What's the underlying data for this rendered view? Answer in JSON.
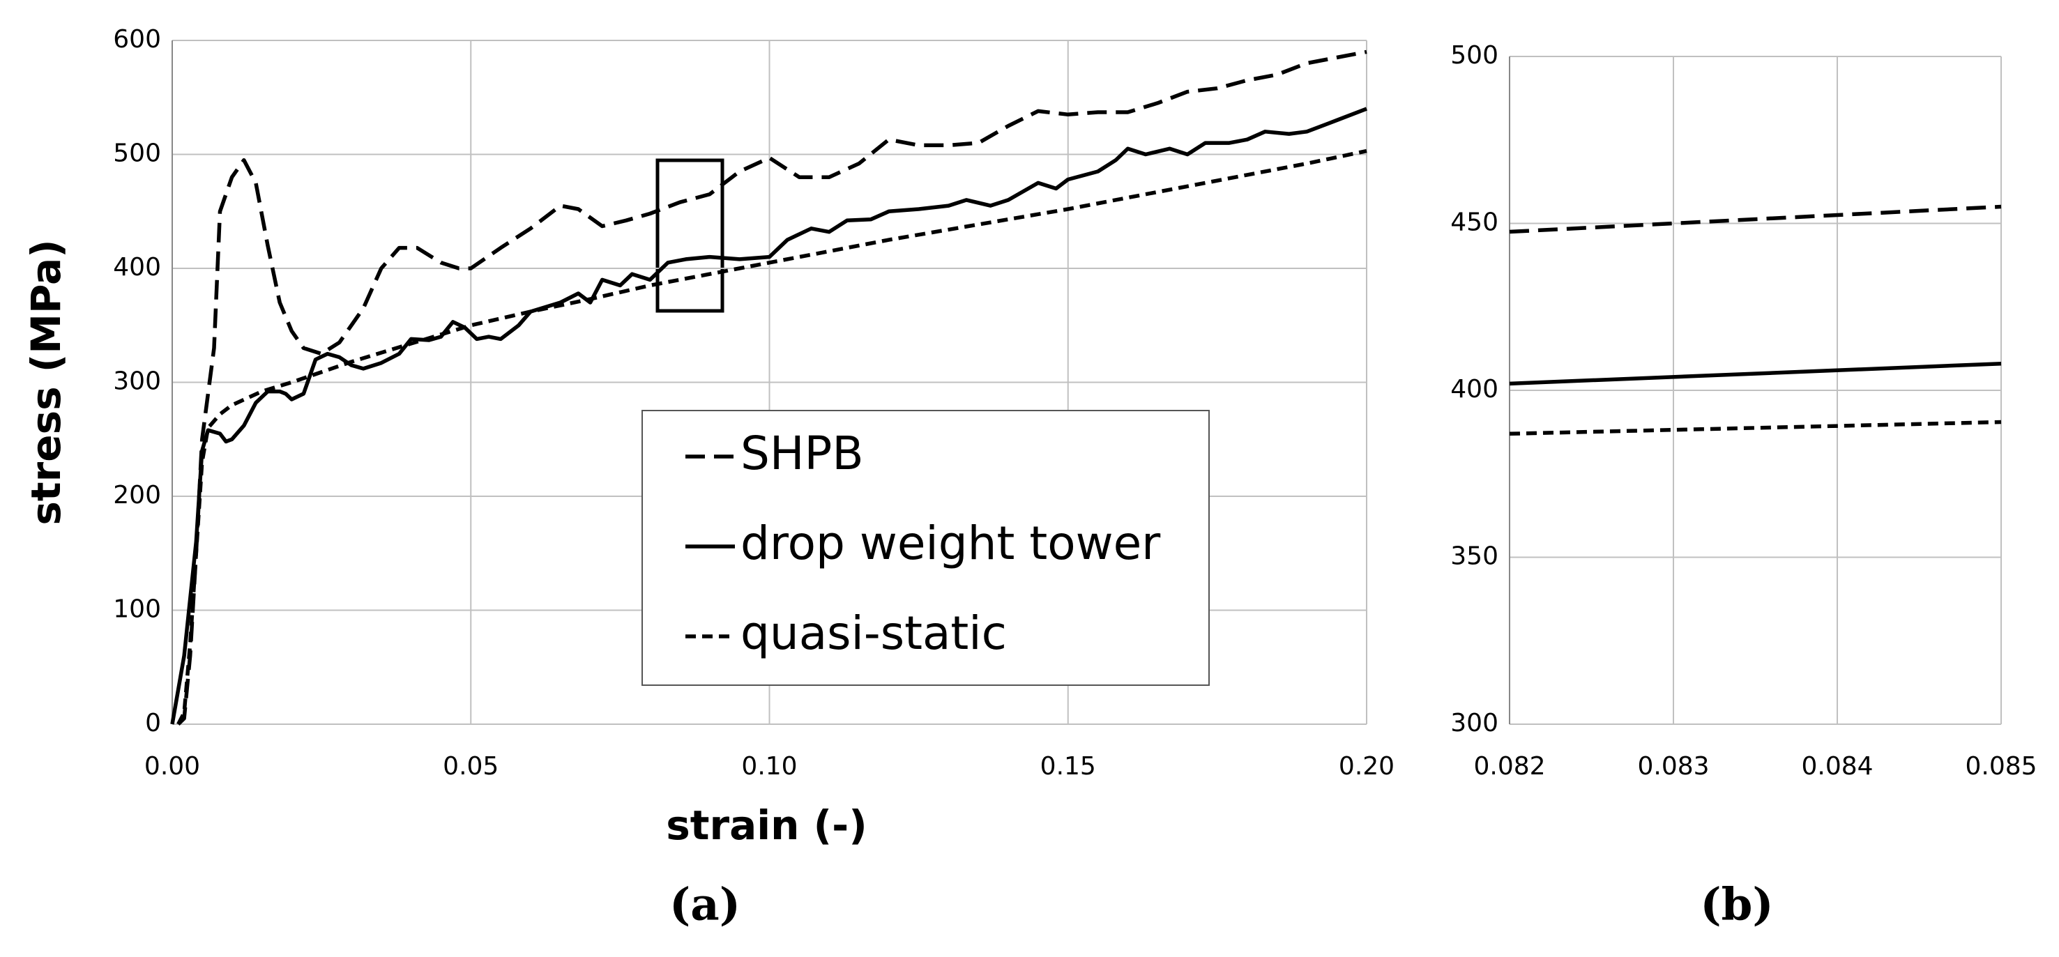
{
  "chart_data": [
    {
      "type": "line",
      "caption": "(a)",
      "x_label": "strain (-)",
      "y_label": "stress (MPa)",
      "xlim": [
        0,
        0.2
      ],
      "xticks": [
        {
          "value": 0,
          "label": "0.00"
        },
        0.05,
        {
          "value": 0.1,
          "label": "0.10"
        },
        0.15,
        {
          "value": 0.2,
          "label": "0.20"
        }
      ],
      "ylim": [
        0,
        600
      ],
      "yticks": [
        0,
        100,
        200,
        300,
        400,
        500,
        600
      ],
      "grid": true,
      "legend": true,
      "series": [
        {
          "name": "SHPB",
          "color": "#000000",
          "dash": "long",
          "x": [
            0.001,
            0.002,
            0.003,
            0.004,
            0.005,
            0.007,
            0.008,
            0.01,
            0.012,
            0.014,
            0.016,
            0.018,
            0.02,
            0.022,
            0.025,
            0.028,
            0.032,
            0.035,
            0.038,
            0.041,
            0.045,
            0.048,
            0.05,
            0.055,
            0.06,
            0.065,
            0.068,
            0.072,
            0.076,
            0.08,
            0.085,
            0.09,
            0.095,
            0.1,
            0.105,
            0.11,
            0.115,
            0.12,
            0.125,
            0.13,
            0.135,
            0.14,
            0.145,
            0.15,
            0.155,
            0.16,
            0.165,
            0.17,
            0.175,
            0.18,
            0.185,
            0.19,
            0.195,
            0.2
          ],
          "values": [
            0,
            5,
            60,
            150,
            250,
            330,
            450,
            480,
            495,
            475,
            420,
            370,
            345,
            330,
            325,
            335,
            365,
            400,
            418,
            418,
            405,
            400,
            400,
            418,
            435,
            455,
            452,
            437,
            442,
            448,
            458,
            465,
            485,
            497,
            480,
            480,
            492,
            513,
            508,
            508,
            510,
            525,
            538,
            535,
            537,
            537,
            545,
            555,
            558,
            565,
            570,
            580,
            585,
            590
          ]
        },
        {
          "name": "drop weight tower",
          "color": "#000000",
          "dash": "solid",
          "x": [
            0,
            0.002,
            0.004,
            0.005,
            0.006,
            0.008,
            0.009,
            0.01,
            0.012,
            0.014,
            0.016,
            0.018,
            0.019,
            0.02,
            0.022,
            0.024,
            0.026,
            0.028,
            0.03,
            0.032,
            0.035,
            0.038,
            0.04,
            0.043,
            0.045,
            0.047,
            0.049,
            0.051,
            0.053,
            0.055,
            0.058,
            0.06,
            0.065,
            0.068,
            0.07,
            0.072,
            0.075,
            0.077,
            0.08,
            0.083,
            0.086,
            0.09,
            0.095,
            0.1,
            0.103,
            0.107,
            0.11,
            0.113,
            0.117,
            0.12,
            0.125,
            0.13,
            0.133,
            0.137,
            0.14,
            0.145,
            0.148,
            0.15,
            0.155,
            0.158,
            0.16,
            0.163,
            0.167,
            0.17,
            0.173,
            0.177,
            0.18,
            0.183,
            0.187,
            0.19,
            0.195,
            0.2
          ],
          "values": [
            0,
            60,
            160,
            240,
            258,
            255,
            248,
            250,
            262,
            282,
            292,
            292,
            290,
            285,
            290,
            320,
            325,
            322,
            315,
            312,
            317,
            325,
            338,
            337,
            340,
            353,
            348,
            338,
            340,
            338,
            350,
            362,
            370,
            378,
            370,
            390,
            385,
            395,
            390,
            405,
            408,
            410,
            408,
            410,
            425,
            435,
            432,
            442,
            443,
            450,
            452,
            455,
            460,
            455,
            460,
            475,
            470,
            478,
            485,
            495,
            505,
            500,
            505,
            500,
            510,
            510,
            513,
            520,
            518,
            520,
            530,
            540
          ]
        },
        {
          "name": "quasi-static",
          "color": "#000000",
          "dash": "short",
          "x": [
            0.001,
            0.002,
            0.003,
            0.004,
            0.005,
            0.006,
            0.008,
            0.01,
            0.015,
            0.02,
            0.03,
            0.04,
            0.05,
            0.06,
            0.07,
            0.08,
            0.09,
            0.1,
            0.11,
            0.12,
            0.13,
            0.14,
            0.15,
            0.16,
            0.17,
            0.18,
            0.19,
            0.2
          ],
          "values": [
            0,
            10,
            70,
            150,
            230,
            260,
            272,
            280,
            292,
            300,
            318,
            334,
            350,
            362,
            373,
            385,
            395,
            405,
            415,
            425,
            434,
            443,
            452,
            462,
            472,
            482,
            492,
            503
          ]
        }
      ]
    },
    {
      "type": "line",
      "caption": "(b)",
      "xlim": [
        0.082,
        0.085
      ],
      "xticks": [
        0.082,
        0.083,
        0.084,
        0.085
      ],
      "ylim": [
        300,
        500
      ],
      "yticks": [
        300,
        350,
        400,
        450,
        500
      ],
      "grid": true,
      "legend": false,
      "series": [
        {
          "color": "#000000",
          "dash": "long",
          "x": [
            0.082,
            0.085
          ],
          "values": [
            447.5,
            455
          ]
        },
        {
          "color": "#000000",
          "dash": "solid",
          "x": [
            0.082,
            0.085
          ],
          "values": [
            402,
            408
          ]
        },
        {
          "color": "#000000",
          "dash": "short",
          "x": [
            0.082,
            0.085
          ],
          "values": [
            387,
            390.5
          ]
        }
      ]
    }
  ]
}
